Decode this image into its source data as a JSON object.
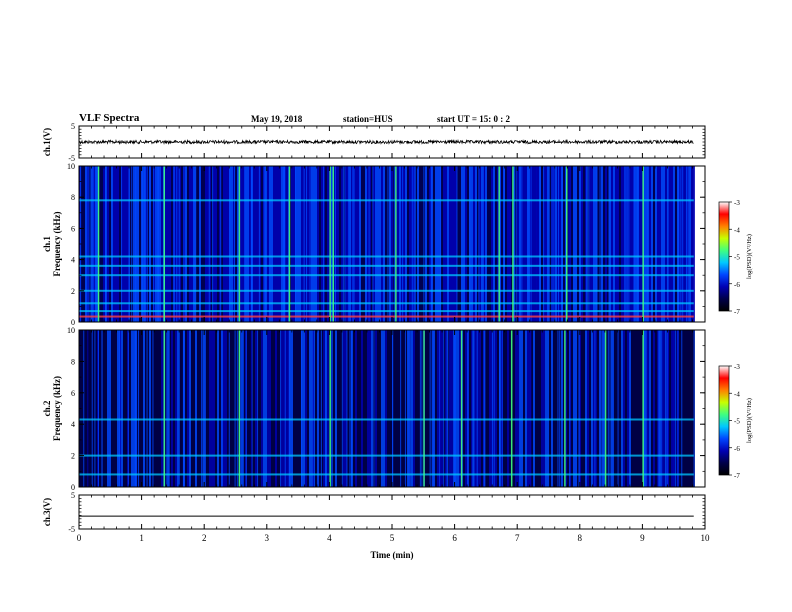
{
  "header": {
    "title": "VLF Spectra",
    "date": "May 19, 2018",
    "station": "station=HUS",
    "start": "start  UT =   15: 0  : 2"
  },
  "colors": {
    "background": "#ffffff",
    "axis": "#000000",
    "trace": "#000000",
    "colormap": [
      "#000000",
      "#00004a",
      "#0000b4",
      "#0046ff",
      "#00c8ff",
      "#40ff80",
      "#c8ff00",
      "#ff8000",
      "#ff0000",
      "#ffffff"
    ]
  },
  "chart_data": [
    {
      "type": "line",
      "panel": "ch1-waveform",
      "ylabel": "ch.1(V)",
      "ylim": [
        -5,
        5
      ],
      "yticks": [
        -5,
        5
      ],
      "xlim": [
        0,
        10
      ],
      "series": [
        {
          "x": [
            0,
            9.82
          ],
          "y_mean": 0,
          "y_band": [
            -0.5,
            0.5
          ]
        }
      ]
    },
    {
      "type": "heatmap",
      "panel": "ch1-spectrogram",
      "ylabel": "ch.1 Frequency  (kHz)",
      "ylim": [
        0,
        10
      ],
      "yticks": [
        0,
        2,
        4,
        6,
        8,
        10
      ],
      "xlim": [
        0,
        10
      ],
      "data_end_min": 9.82,
      "colorbar": {
        "label": "log(PSD)(V²/Hz)",
        "range": [
          -7,
          -3
        ],
        "ticks": [
          -3,
          -4,
          -5,
          -6,
          -7
        ]
      },
      "horizontal_lines_khz": [
        0.7,
        1.2,
        2.0,
        3.0,
        3.6,
        4.2,
        7.8
      ],
      "bright_vertical_lines_min": [
        0.3,
        1.35,
        2.55,
        3.35,
        4.0,
        4.05,
        5.05,
        6.7,
        6.92,
        7.78,
        9.0
      ]
    },
    {
      "type": "heatmap",
      "panel": "ch2-spectrogram",
      "ylabel": "ch.2 Frequency  (kHz)",
      "ylim": [
        0,
        10
      ],
      "yticks": [
        0,
        2,
        4,
        6,
        8,
        10
      ],
      "xlim": [
        0,
        10
      ],
      "data_end_min": 9.82,
      "colorbar": {
        "label": "log(PSD)(V²/Hz)",
        "range": [
          -7,
          -3
        ],
        "ticks": [
          -3,
          -4,
          -5,
          -6,
          -7
        ]
      },
      "horizontal_lines_khz": [
        0.8,
        2.0,
        4.3
      ],
      "bright_vertical_lines_min": [
        1.35,
        2.55,
        4.0,
        5.5,
        6.1,
        6.9,
        7.75,
        8.4,
        9.0
      ]
    },
    {
      "type": "line",
      "panel": "ch3-waveform",
      "ylabel": "ch.3(V)",
      "ylim": [
        -5,
        5
      ],
      "yticks": [
        -5,
        5
      ],
      "xlim": [
        0,
        10
      ],
      "series": [
        {
          "x": [
            0,
            9.82
          ],
          "y_mean": -1.2
        }
      ]
    }
  ],
  "xaxis": {
    "label": "Time  (min)",
    "ticks": [
      0,
      1,
      2,
      3,
      4,
      5,
      6,
      7,
      8,
      9,
      10
    ]
  }
}
